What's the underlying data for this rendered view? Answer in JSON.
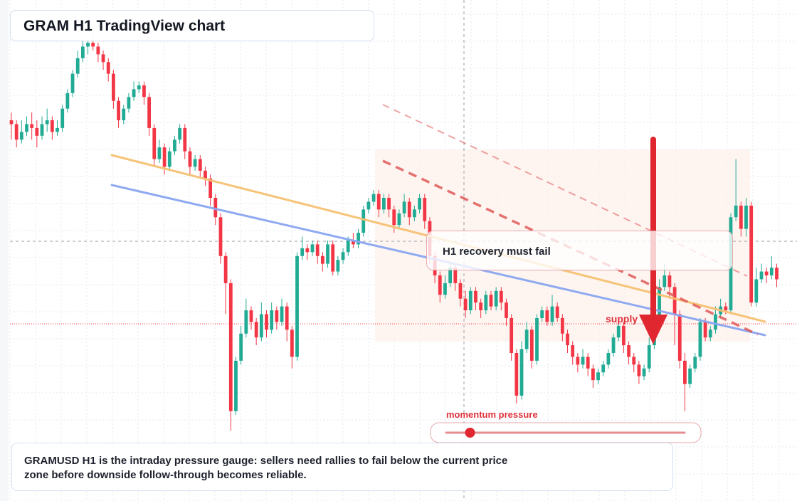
{
  "title": "GRAM H1 TradingView chart",
  "callout": "H1 recovery must fail",
  "note": "GRAMUSD H1 is the intraday pressure gauge: sellers need rallies to fail below the current price zone before downside follow-through becomes reliable.",
  "gauge": {
    "label": "momentum pressure",
    "level": 0.1
  },
  "supply_label": "supply",
  "colors": {
    "up": "#22ab94",
    "down": "#f23645",
    "orange_trendline": "#f6c172",
    "blue_trendline": "#8aa6f2",
    "bearish_projection": "#e05a5a",
    "arrow": "#e0262e",
    "zone": "#fdf2ec",
    "grid": "#e3e7ee"
  },
  "chart_data": {
    "type": "candlestick",
    "symbol": "GRAMUSD",
    "timeframe": "H1",
    "title": "GRAM H1 TradingView chart",
    "candles_note": "relative price levels (0-100), read off the image; no price axis is printed",
    "candles": [
      [
        80,
        79,
        82,
        75
      ],
      [
        79,
        75,
        80,
        73
      ],
      [
        75,
        77,
        80,
        74
      ],
      [
        77,
        79,
        81,
        76
      ],
      [
        79,
        78,
        82,
        75
      ],
      [
        78,
        76,
        80,
        73
      ],
      [
        76,
        79,
        81,
        75
      ],
      [
        79,
        80,
        83,
        77
      ],
      [
        80,
        77,
        81,
        75
      ],
      [
        77,
        78,
        80,
        76
      ],
      [
        78,
        83,
        84,
        77
      ],
      [
        83,
        87,
        88,
        82
      ],
      [
        87,
        92,
        93,
        86
      ],
      [
        92,
        96,
        98,
        91
      ],
      [
        96,
        99,
        101,
        95
      ],
      [
        99,
        100,
        101,
        97
      ],
      [
        100,
        99,
        102,
        98
      ],
      [
        99,
        97,
        100,
        95
      ],
      [
        97,
        95,
        98,
        93
      ],
      [
        95,
        92,
        96,
        90
      ],
      [
        92,
        85,
        93,
        83
      ],
      [
        85,
        80,
        86,
        78
      ],
      [
        80,
        83,
        84,
        79
      ],
      [
        83,
        86,
        87,
        82
      ],
      [
        86,
        88,
        90,
        85
      ],
      [
        88,
        89,
        90,
        87
      ],
      [
        89,
        86,
        90,
        84
      ],
      [
        86,
        78,
        87,
        76
      ],
      [
        78,
        70,
        79,
        68
      ],
      [
        70,
        73,
        75,
        69
      ],
      [
        73,
        68,
        74,
        66
      ],
      [
        68,
        72,
        73,
        67
      ],
      [
        72,
        75,
        76,
        71
      ],
      [
        75,
        78,
        79,
        74
      ],
      [
        78,
        72,
        79,
        70
      ],
      [
        72,
        68,
        73,
        66
      ],
      [
        68,
        70,
        71,
        67
      ],
      [
        70,
        67,
        71,
        65
      ],
      [
        67,
        65,
        68,
        63
      ],
      [
        65,
        60,
        66,
        58
      ],
      [
        60,
        55,
        61,
        53
      ],
      [
        55,
        45,
        56,
        43
      ],
      [
        45,
        38,
        46,
        30
      ],
      [
        38,
        5,
        39,
        0
      ],
      [
        5,
        18,
        19,
        4
      ],
      [
        18,
        25,
        27,
        17
      ],
      [
        25,
        31,
        34,
        24
      ],
      [
        31,
        28,
        32,
        26
      ],
      [
        28,
        24,
        29,
        22
      ],
      [
        24,
        30,
        33,
        23
      ],
      [
        30,
        26,
        31,
        24
      ],
      [
        26,
        31,
        33,
        25
      ],
      [
        31,
        28,
        32,
        26
      ],
      [
        28,
        32,
        34,
        27
      ],
      [
        32,
        26,
        33,
        23
      ],
      [
        26,
        19,
        27,
        16
      ],
      [
        19,
        45,
        46,
        18
      ],
      [
        45,
        47,
        50,
        44
      ],
      [
        47,
        46,
        48,
        44
      ],
      [
        46,
        48,
        49,
        45
      ],
      [
        48,
        45,
        49,
        43
      ],
      [
        45,
        43,
        46,
        41
      ],
      [
        43,
        48,
        49,
        42
      ],
      [
        48,
        41,
        49,
        40
      ],
      [
        41,
        44,
        45,
        40
      ],
      [
        44,
        46,
        47,
        43
      ],
      [
        46,
        49,
        50,
        45
      ],
      [
        49,
        48,
        51,
        47
      ],
      [
        48,
        51,
        52,
        47
      ],
      [
        51,
        57,
        58,
        50
      ],
      [
        57,
        59,
        60,
        56
      ],
      [
        59,
        61,
        62,
        58
      ],
      [
        61,
        57,
        62,
        55
      ],
      [
        57,
        60,
        61,
        56
      ],
      [
        60,
        57,
        61,
        55
      ],
      [
        57,
        53,
        58,
        51
      ],
      [
        53,
        56,
        57,
        52
      ],
      [
        56,
        59,
        61,
        55
      ],
      [
        59,
        55,
        60,
        53
      ],
      [
        55,
        57,
        58,
        54
      ],
      [
        57,
        60,
        61,
        56
      ],
      [
        60,
        54,
        61,
        52
      ],
      [
        54,
        45,
        55,
        43
      ],
      [
        45,
        40,
        46,
        38
      ],
      [
        40,
        35,
        41,
        33
      ],
      [
        35,
        38,
        40,
        34
      ],
      [
        38,
        42,
        43,
        37
      ],
      [
        42,
        38,
        43,
        36
      ],
      [
        38,
        34,
        39,
        32
      ],
      [
        34,
        31,
        36,
        29
      ],
      [
        31,
        36,
        37,
        30
      ],
      [
        36,
        33,
        37,
        31
      ],
      [
        33,
        31,
        34,
        29
      ],
      [
        31,
        35,
        36,
        30
      ],
      [
        35,
        32,
        36,
        31
      ],
      [
        32,
        36,
        37,
        31
      ],
      [
        36,
        33,
        37,
        31
      ],
      [
        33,
        29,
        34,
        27
      ],
      [
        29,
        20,
        30,
        18
      ],
      [
        20,
        9,
        21,
        7
      ],
      [
        9,
        21,
        23,
        8
      ],
      [
        21,
        26,
        28,
        20
      ],
      [
        26,
        18,
        27,
        16
      ],
      [
        18,
        29,
        30,
        17
      ],
      [
        29,
        31,
        32,
        28
      ],
      [
        31,
        28,
        32,
        27
      ],
      [
        28,
        32,
        35,
        27
      ],
      [
        32,
        29,
        33,
        28
      ],
      [
        29,
        25,
        30,
        23
      ],
      [
        25,
        22,
        26,
        20
      ],
      [
        22,
        19,
        23,
        17
      ],
      [
        19,
        17,
        20,
        15
      ],
      [
        17,
        19,
        21,
        16
      ],
      [
        19,
        16,
        20,
        14
      ],
      [
        16,
        13,
        17,
        11
      ],
      [
        13,
        15,
        16,
        12
      ],
      [
        15,
        17,
        18,
        14
      ],
      [
        17,
        20,
        21,
        16
      ],
      [
        20,
        24,
        25,
        19
      ],
      [
        24,
        27,
        28,
        23
      ],
      [
        27,
        22,
        28,
        20
      ],
      [
        22,
        19,
        23,
        17
      ],
      [
        19,
        17,
        20,
        15
      ],
      [
        17,
        14,
        18,
        12
      ],
      [
        14,
        16,
        17,
        13
      ],
      [
        16,
        22,
        24,
        15
      ],
      [
        22,
        29,
        30,
        21
      ],
      [
        29,
        37,
        39,
        28
      ],
      [
        37,
        40,
        43,
        36
      ],
      [
        40,
        37,
        41,
        34
      ],
      [
        37,
        30,
        38,
        22
      ],
      [
        30,
        18,
        31,
        16
      ],
      [
        18,
        12,
        20,
        5
      ],
      [
        12,
        16,
        17,
        11
      ],
      [
        16,
        19,
        20,
        15
      ],
      [
        19,
        28,
        29,
        18
      ],
      [
        28,
        24,
        29,
        23
      ],
      [
        24,
        26,
        27,
        23
      ],
      [
        26,
        30,
        32,
        25
      ],
      [
        30,
        32,
        34,
        29
      ],
      [
        32,
        31,
        33,
        30
      ],
      [
        31,
        55,
        56,
        30
      ],
      [
        55,
        58,
        70,
        54
      ],
      [
        58,
        52,
        59,
        50
      ],
      [
        52,
        58,
        60,
        50
      ],
      [
        58,
        33,
        59,
        32
      ],
      [
        33,
        39,
        42,
        32
      ],
      [
        39,
        41,
        43,
        38
      ],
      [
        41,
        40,
        42,
        38
      ],
      [
        40,
        42,
        45,
        39
      ],
      [
        42,
        39,
        43,
        37
      ]
    ],
    "overlays": [
      {
        "kind": "trendline",
        "color": "orange",
        "from": 65,
        "to": 39
      },
      {
        "kind": "trendline",
        "color": "blue",
        "from": 57,
        "to": 33
      },
      {
        "kind": "dashed projection",
        "color": "red"
      },
      {
        "kind": "dashed projection",
        "color": "light red"
      },
      {
        "kind": "resistance zone"
      },
      {
        "kind": "down arrow",
        "label": "supply"
      }
    ]
  }
}
